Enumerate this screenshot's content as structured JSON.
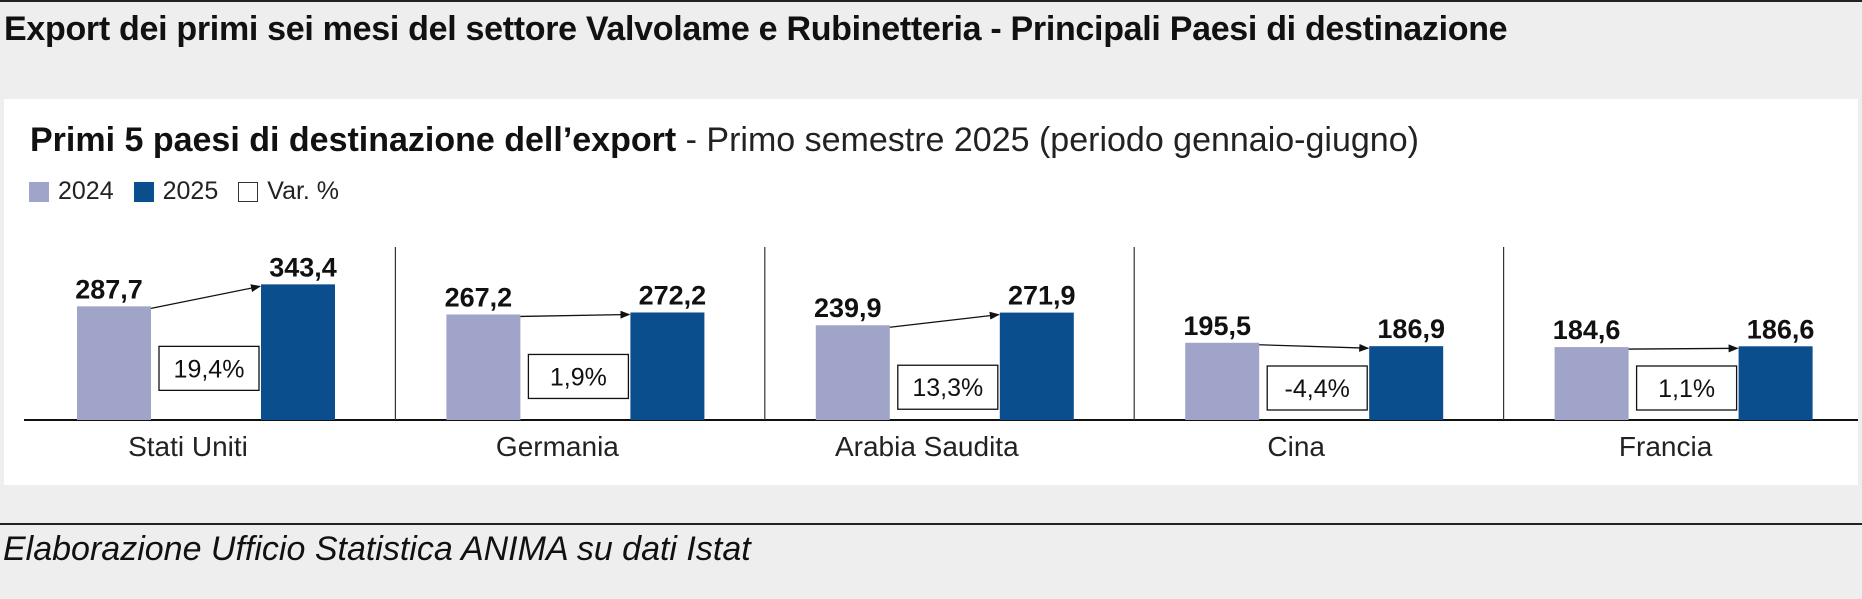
{
  "header": {
    "title": "Export dei primi sei mesi del settore Valvolame e Rubinetteria - Principali Paesi di destinazione"
  },
  "chart_data": {
    "type": "bar",
    "title": "Primi 5 paesi di destinazione dell’export",
    "subtitle": " - Primo semestre 2025 (periodo gennaio-giugno)",
    "categories": [
      "Stati Uniti",
      "Germania",
      "Arabia Saudita",
      "Cina",
      "Francia"
    ],
    "series": [
      {
        "name": "2024",
        "values": [
          287.7,
          267.2,
          239.9,
          195.5,
          184.6
        ],
        "labels": [
          "287,7",
          "267,2",
          "239,9",
          "195,5",
          "184,6"
        ],
        "color": "#a0a4c8"
      },
      {
        "name": "2025",
        "values": [
          343.4,
          272.2,
          271.9,
          186.9,
          186.6
        ],
        "labels": [
          "343,4",
          "272,2",
          "271,9",
          "186,9",
          "186,6"
        ],
        "color": "#0b4e8e"
      }
    ],
    "variation": {
      "name": "Var. %",
      "values": [
        19.4,
        1.9,
        13.3,
        -4.4,
        1.1
      ],
      "labels": [
        "19,4%",
        "1,9%",
        "13,3%",
        "-4,4%",
        "1,1%"
      ]
    },
    "legend_position": "top-left",
    "grid": false,
    "xlabel": "",
    "ylabel": ""
  },
  "footer": {
    "source": "Elaborazione Ufficio Statistica ANIMA su dati Istat"
  }
}
